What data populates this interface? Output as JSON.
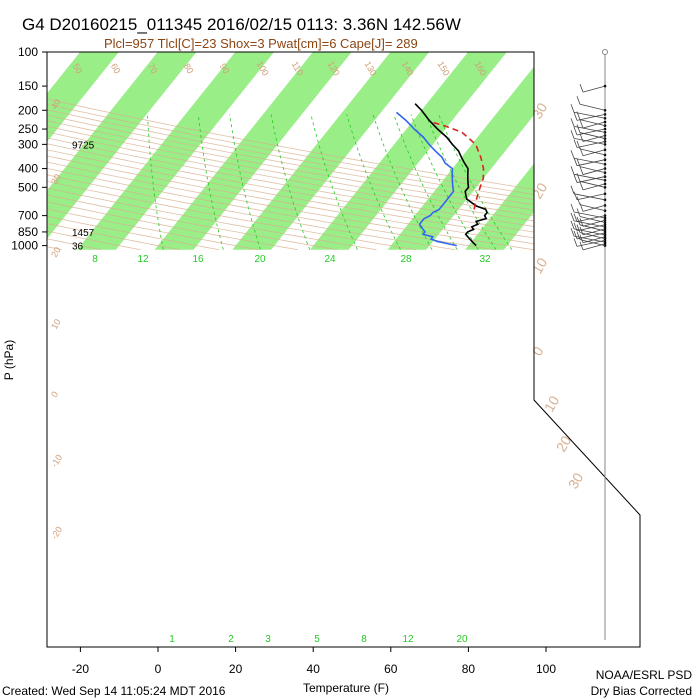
{
  "title": "G4 D20160215_011345 2016/02/15 0113:  3.36N 142.56W",
  "subtitle": "Plcl=957 Tlcl[C]=23 Shox=3 Pwat[cm]=6 Cape[J]= 289",
  "footer_created": "Created: Wed Sep 14 11:05:24 MDT 2016",
  "footer_org": "NOAA/ESRL PSD",
  "footer_note": "Dry Bias Corrected",
  "colors": {
    "temperature": "#000000",
    "dewpoint": "#3366ee",
    "parcel": "#dd2222",
    "isotherm_band": "#99ee88",
    "dry_adiabat": "#d8b090",
    "mixing_ratio": "#22cc22"
  },
  "chart_data": {
    "type": "line",
    "diagram": "skew-T log-P",
    "xlabel": "Temperature (F)",
    "ylabel": "P (hPa)",
    "x_ticks": [
      "-20",
      "0",
      "20",
      "40",
      "60",
      "80",
      "100"
    ],
    "y_ticks": [
      "100",
      "150",
      "200",
      "250",
      "300",
      "400",
      "500",
      "700",
      "850",
      "1000"
    ],
    "xlim": [
      -29,
      104
    ],
    "ylim": [
      1040,
      100
    ],
    "y_scale": "log",
    "series": [
      {
        "name": "",
        "color": "#000000",
        "points": [
          [
            82,
            1000
          ],
          [
            81,
            975
          ],
          [
            80,
            950
          ],
          [
            79,
            925
          ],
          [
            78,
            900
          ],
          [
            77,
            875
          ],
          [
            77,
            850
          ],
          [
            78,
            825
          ],
          [
            77,
            800
          ],
          [
            78,
            775
          ],
          [
            77,
            750
          ],
          [
            79,
            725
          ],
          [
            78,
            700
          ],
          [
            78,
            675
          ],
          [
            77,
            650
          ],
          [
            74,
            625
          ],
          [
            72,
            600
          ],
          [
            70,
            575
          ],
          [
            69,
            550
          ],
          [
            68,
            525
          ],
          [
            68,
            500
          ],
          [
            67,
            475
          ],
          [
            66,
            450
          ],
          [
            65,
            425
          ],
          [
            64,
            400
          ],
          [
            62,
            375
          ],
          [
            60,
            350
          ],
          [
            58,
            325
          ],
          [
            55,
            300
          ],
          [
            52,
            275
          ],
          [
            48,
            250
          ],
          [
            44,
            225
          ],
          [
            40,
            200
          ],
          [
            37,
            185
          ]
        ]
      },
      {
        "name": "",
        "color": "#3366ee",
        "points": [
          [
            77,
            1000
          ],
          [
            74,
            975
          ],
          [
            71,
            950
          ],
          [
            69,
            925
          ],
          [
            69,
            900
          ],
          [
            66,
            875
          ],
          [
            66,
            850
          ],
          [
            65,
            825
          ],
          [
            64,
            800
          ],
          [
            63,
            775
          ],
          [
            63,
            750
          ],
          [
            63,
            725
          ],
          [
            64,
            700
          ],
          [
            64,
            675
          ],
          [
            65,
            650
          ],
          [
            65,
            625
          ],
          [
            65,
            600
          ],
          [
            65,
            575
          ],
          [
            65,
            550
          ],
          [
            65,
            525
          ],
          [
            64,
            500
          ],
          [
            63,
            475
          ],
          [
            62,
            450
          ],
          [
            61,
            425
          ],
          [
            60,
            400
          ],
          [
            57,
            375
          ],
          [
            55,
            350
          ],
          [
            52,
            325
          ],
          [
            49,
            300
          ],
          [
            46,
            275
          ],
          [
            42,
            250
          ],
          [
            38,
            225
          ],
          [
            34,
            205
          ]
        ]
      },
      {
        "name": "",
        "color": "#dd2222",
        "points": [
          [
            74,
            650
          ],
          [
            73,
            600
          ],
          [
            72,
            550
          ],
          [
            71,
            500
          ],
          [
            70,
            450
          ],
          [
            68,
            400
          ],
          [
            65,
            350
          ],
          [
            61,
            300
          ],
          [
            55,
            260
          ],
          [
            49,
            240
          ],
          [
            45,
            230
          ]
        ]
      }
    ],
    "mixing_ratio_labels": [
      "8",
      "12",
      "16",
      "20",
      "24",
      "28",
      "32"
    ],
    "bottom_mixing_labels": [
      "1",
      "2",
      "3",
      "5",
      "8",
      "12",
      "20"
    ],
    "dry_adiabat_labels": [
      "50",
      "60",
      "70",
      "80",
      "90",
      "100",
      "110",
      "120",
      "130",
      "140",
      "150",
      "160"
    ],
    "height_labels": [
      {
        "p": 300,
        "text": "9725"
      },
      {
        "p": 850,
        "text": "1457"
      },
      {
        "p": 1000,
        "text": "36"
      }
    ],
    "hodo_labels": [
      "30",
      "20",
      "10",
      "0",
      "10",
      "20",
      "30"
    ],
    "side_labels": [
      "40",
      "30",
      "20",
      "10",
      "0",
      "-10",
      "-20"
    ]
  }
}
